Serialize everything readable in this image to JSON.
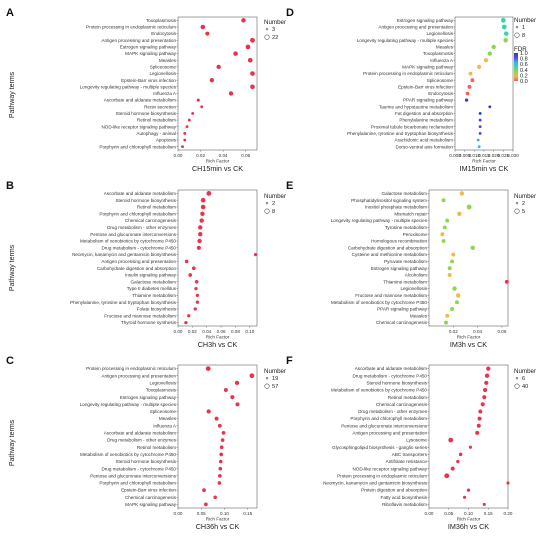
{
  "figure": {
    "y_axis_label": "Pathway terms",
    "x_axis_label": "Rich Factor"
  },
  "colors": {
    "dot_red": "#e8334d",
    "fdr_scale": [
      "#2b3dd8",
      "#5a3fe0",
      "#2fb8e6",
      "#38d6a6",
      "#8ed64a",
      "#f2b84a",
      "#f0605d"
    ]
  },
  "chart_data": [
    {
      "panel": "A",
      "type": "scatter",
      "title": "CH15min vs CK",
      "xlabel": "Rich Factor",
      "ylabel": "Pathway terms",
      "xlim": [
        0,
        0.07
      ],
      "xticks": [
        "0.00",
        "0.02",
        "0.04",
        "0.06"
      ],
      "legend": {
        "title": "Number",
        "entries": [
          "3",
          "22"
        ],
        "placement": "top-right"
      },
      "terms": [
        "Toxoplasmosis",
        "Protein processing in endoplasmic reticulum",
        "Endocytosis",
        "Antigen processing and presentation",
        "Estrogen signaling pathway",
        "MAPK signaling pathway",
        "Measles",
        "Spliceosome",
        "Legionellosis",
        "Epstein-Barr virus infection",
        "Longevity regulating pathway - multiple species",
        "Influenza A",
        "Ascorbate and aldarate metabolism",
        "Renin secretion",
        "Steroid hormone biosynthesis",
        "Retinol metabolism",
        "NOD-like receptor signaling pathway",
        "Autophagy - animal",
        "Apoptosis",
        "Porphyrin and chlorophyll metabolism"
      ],
      "values": [
        0.058,
        0.022,
        0.026,
        0.066,
        0.062,
        0.051,
        0.064,
        0.036,
        0.066,
        0.03,
        0.066,
        0.047,
        0.018,
        0.021,
        0.013,
        0.01,
        0.008,
        0.006,
        0.006,
        0.004
      ],
      "sizes": [
        18,
        18,
        12,
        22,
        20,
        18,
        20,
        16,
        20,
        16,
        20,
        16,
        4,
        3,
        3,
        3,
        3,
        3,
        3,
        3
      ]
    },
    {
      "panel": "B",
      "type": "scatter",
      "title": "CH3h vs CK",
      "xlabel": "Rich Factor",
      "ylabel": "Pathway terms",
      "xlim": [
        0,
        0.11
      ],
      "xticks": [
        "0.00",
        "0.02",
        "0.04",
        "0.06",
        "0.08",
        "0.10"
      ],
      "legend": {
        "title": "Number",
        "entries": [
          "2",
          "8"
        ],
        "placement": "top-right"
      },
      "terms": [
        "Ascorbate and aldarate metabolism",
        "Steroid hormone biosynthesis",
        "Retinol metabolism",
        "Porphyrin and chlorophyll metabolism",
        "Chemical carcinogenesis",
        "Drug metabolism - other enzymes",
        "Pentose and glucuronate interconversions",
        "Metabolism of xenobiotics by cytochrome P450",
        "Drug metabolism - cytochrome P450",
        "Neomycin, kanamycin and gentamicin biosynthesis",
        "Antigen processing and presentation",
        "Carbohydrate digestion and absorption",
        "Insulin signaling pathway",
        "Galactose metabolism",
        "Type II diabetes mellitus",
        "Thiamine metabolism",
        "Phenylalanine, tyrosine and tryptophan biosynthesis",
        "Folate biosynthesis",
        "Fructose and mannose metabolism",
        "Thyroid hormone synthesis"
      ],
      "values": [
        0.043,
        0.035,
        0.035,
        0.034,
        0.033,
        0.031,
        0.031,
        0.03,
        0.029,
        0.108,
        0.012,
        0.022,
        0.017,
        0.026,
        0.025,
        0.027,
        0.027,
        0.024,
        0.015,
        0.011
      ],
      "sizes": [
        8,
        7,
        7,
        6,
        6,
        6,
        6,
        6,
        5,
        2,
        3,
        3,
        3,
        3,
        2,
        2,
        2,
        2,
        2,
        2
      ]
    },
    {
      "panel": "C",
      "type": "scatter",
      "title": "CH36h vs CK",
      "xlabel": "Rich Factor",
      "ylabel": "Pathway terms",
      "xlim": [
        0,
        0.17
      ],
      "xticks": [
        "0.00",
        "0.05",
        "0.10",
        "0.15"
      ],
      "legend": {
        "title": "Number",
        "entries": [
          "19",
          "57"
        ],
        "placement": "top-right"
      },
      "terms": [
        "Protein processing in endoplasmic reticulum",
        "Antigen processing and presentation",
        "Legionellosis",
        "Toxoplasmosis",
        "Estrogen signaling pathway",
        "Longevity regulating pathway - multiple species",
        "Spliceosome",
        "Measles",
        "Influenza A",
        "Ascorbate and aldarate metabolism",
        "Drug metabolism - other enzymes",
        "Retinol metabolism",
        "Metabolism of xenobiotics by cytochrome P450",
        "Steroid hormone biosynthesis",
        "Drug metabolism - cytochrome P450",
        "Pentose and glucuronate interconversions",
        "Porphyrin and chlorophyll metabolism",
        "Epstein-Barr virus infection",
        "Chemical carcinogenesis",
        "MAPK signaling pathway"
      ],
      "values": [
        0.065,
        0.159,
        0.127,
        0.103,
        0.117,
        0.128,
        0.066,
        0.083,
        0.09,
        0.098,
        0.096,
        0.094,
        0.093,
        0.092,
        0.091,
        0.09,
        0.089,
        0.056,
        0.08,
        0.06
      ],
      "sizes": [
        55,
        57,
        38,
        30,
        32,
        30,
        34,
        28,
        26,
        24,
        22,
        22,
        22,
        21,
        21,
        21,
        20,
        26,
        20,
        24
      ]
    },
    {
      "panel": "D",
      "type": "scatter",
      "title": "IM15min vs CK",
      "xlabel": "Rich Factor",
      "ylabel": "Pathway terms",
      "xlim": [
        0,
        0.03
      ],
      "xticks": [
        "0.000",
        "0.005",
        "0.010",
        "0.015",
        "0.020",
        "0.025",
        "0.030"
      ],
      "legend": {
        "title": "Number",
        "entries": [
          "1",
          "8"
        ],
        "placement": "top-right",
        "color_title": "FDR",
        "color_ticks": [
          "1.0",
          "0.8",
          "0.6",
          "0.4",
          "0.2",
          "0.0"
        ]
      },
      "terms": [
        "Estrogen signaling pathway",
        "Antigen processing and presentation",
        "Legionellosis",
        "Longevity regulating pathway - multiple species",
        "Measles",
        "Toxoplasmosis",
        "Influenza A",
        "MAPK signaling pathway",
        "Protein processing in endoplasmic reticulum",
        "Spliceosome",
        "Epstein-Barr virus infection",
        "Endocytosis",
        "PPAR signaling pathway",
        "Taurine and hypotaurine metabolism",
        "Fat digestion and absorption",
        "Phenylalanine metabolism",
        "Proximal tubule bicarbonate reclamation",
        "Phenylalanine, tyrosine and tryptophan biosynthesis",
        "Arachidonic acid metabolism",
        "Dorso-ventral axis formation"
      ],
      "values": [
        0.025,
        0.0255,
        0.0265,
        0.0262,
        0.02,
        0.018,
        0.016,
        0.0125,
        0.008,
        0.009,
        0.0075,
        0.0065,
        0.006,
        0.018,
        0.013,
        0.013,
        0.013,
        0.013,
        0.012,
        0.0125
      ],
      "sizes": [
        8,
        8,
        7,
        7,
        6,
        6,
        5,
        5,
        4,
        4,
        4,
        3,
        2,
        1,
        1,
        1,
        1,
        1,
        1,
        1
      ]
    },
    {
      "panel": "E",
      "type": "scatter",
      "title": "IM3h vs CK",
      "xlabel": "Rich Factor",
      "ylabel": "Pathway terms",
      "xlim": [
        0,
        0.065
      ],
      "xticks": [
        "0.02",
        "0.04",
        "0.06"
      ],
      "legend": {
        "title": "Number",
        "entries": [
          "2",
          "5"
        ],
        "placement": "top-right"
      },
      "terms": [
        "Galactose metabolism",
        "Phosphatidylinositol signaling system",
        "Inositol phosphate metabolism",
        "Mismatch repair",
        "Longevity regulating pathway - multiple species",
        "Tyrosine metabolism",
        "Peroxisome",
        "Homologous recombination",
        "Carbohydrate digestion and absorption",
        "Cysteine and methionine metabolism",
        "Pyruvate metabolism",
        "Estrogen signaling pathway",
        "Alcoholism",
        "Thiamine metabolism",
        "Legionellosis",
        "Fructose and mannose metabolism",
        "Metabolism of xenobiotics by cytochrome P450",
        "PPAR signaling pathway",
        "Measles",
        "Chemical carcinogenesis"
      ],
      "values": [
        0.027,
        0.012,
        0.033,
        0.025,
        0.015,
        0.013,
        0.011,
        0.012,
        0.036,
        0.02,
        0.019,
        0.017,
        0.017,
        0.064,
        0.021,
        0.024,
        0.023,
        0.019,
        0.015,
        0.014
      ],
      "sizes": [
        3,
        2,
        4,
        3,
        2,
        2,
        2,
        2,
        3,
        2,
        2,
        2,
        2,
        2,
        3,
        3,
        2,
        2,
        2,
        2
      ]
    },
    {
      "panel": "F",
      "type": "scatter",
      "title": "IM36h vs CK",
      "xlabel": "Rich Factor",
      "ylabel": "Pathway terms",
      "xlim": [
        0,
        0.2
      ],
      "xticks": [
        "0.00",
        "0.05",
        "0.10",
        "0.15",
        "0.20"
      ],
      "legend": {
        "title": "Number",
        "entries": [
          "6",
          "40"
        ],
        "placement": "top-right"
      },
      "terms": [
        "Ascorbate and aldarate metabolism",
        "Drug metabolism - cytochrome P450",
        "Steroid hormone biosynthesis",
        "Metabolism of xenobiotics by cytochrome P450",
        "Retinol metabolism",
        "Chemical carcinogenesis",
        "Drug metabolism - other enzymes",
        "Porphyrin and chlorophyll metabolism",
        "Pentose and glucuronate interconversions",
        "Antigen processing and presentation",
        "Lysosome",
        "Glycosphingolipid biosynthesis - ganglio series",
        "ABC transporters",
        "Antifolate resistance",
        "NOD-like receptor signaling pathway",
        "Protein processing in endoplasmic reticulum",
        "Neomycin, kanamycin and gentamicin biosynthesis",
        "Protein digestion and absorption",
        "Fatty acid biosynthesis",
        "Riboflavin metabolism"
      ],
      "values": [
        0.15,
        0.147,
        0.145,
        0.142,
        0.14,
        0.136,
        0.13,
        0.128,
        0.126,
        0.122,
        0.055,
        0.105,
        0.08,
        0.073,
        0.06,
        0.045,
        0.2,
        0.1,
        0.09,
        0.14
      ],
      "sizes": [
        20,
        22,
        18,
        20,
        18,
        18,
        16,
        16,
        16,
        16,
        28,
        6,
        10,
        8,
        16,
        30,
        6,
        8,
        6,
        6
      ]
    }
  ]
}
